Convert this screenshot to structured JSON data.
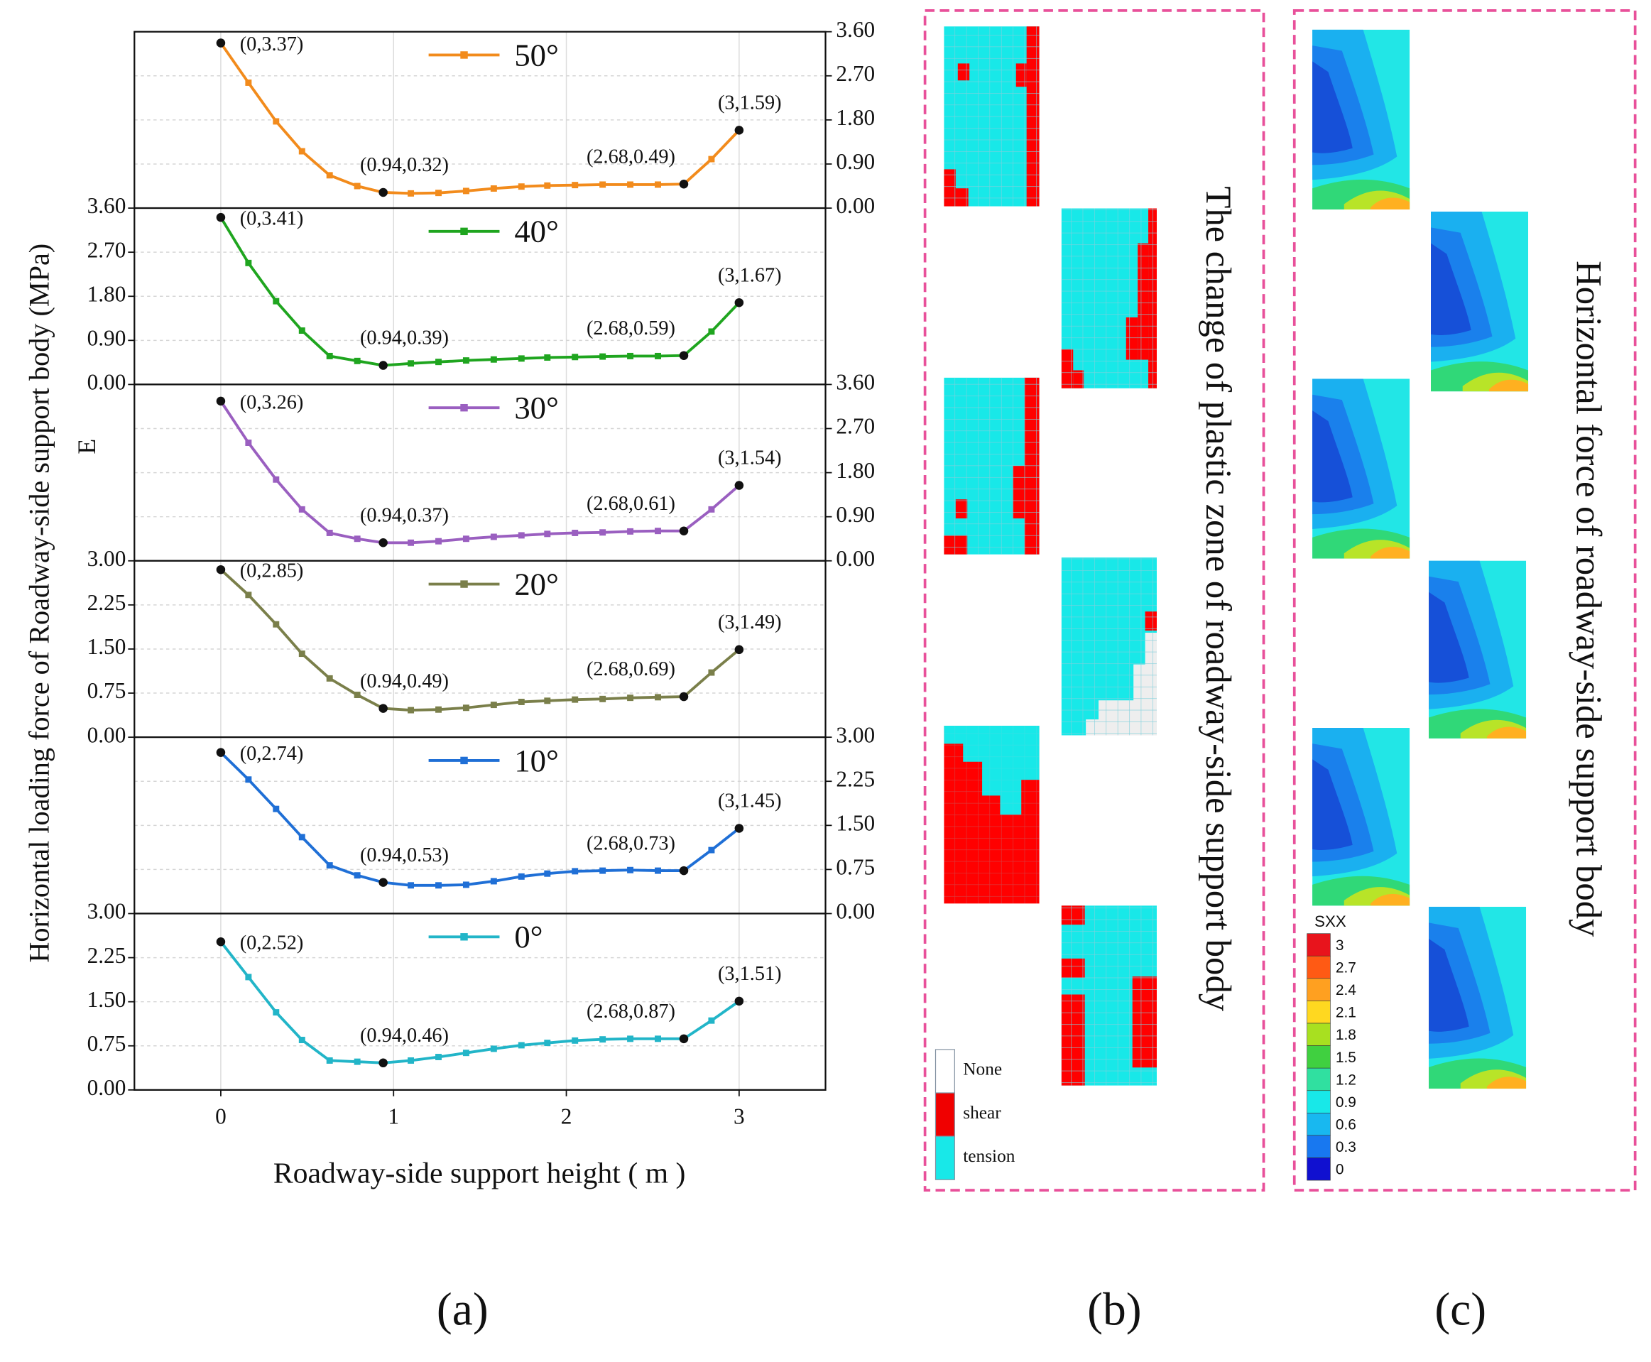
{
  "figure": {
    "ylabel": "Horizontal loading force of Roadway-side support body (MPa)",
    "xlabel": "Roadway-side support height ( m )",
    "side_label": "E",
    "captions": [
      "(a)",
      "(b)",
      "(c)"
    ],
    "panel_b": {
      "title": "The change of plastic zone of roadway-side support body",
      "legend": [
        {
          "name": "None",
          "color": "#ffffff"
        },
        {
          "name": "shear",
          "color": "#f00000"
        },
        {
          "name": "tension",
          "color": "#18e8e8"
        }
      ]
    },
    "panel_c": {
      "title": "Horizontal force of roadway-side support body",
      "colorbar": {
        "title": "SXX",
        "ticks": [
          3,
          2.7,
          2.4,
          2.1,
          1.8,
          1.5,
          1.2,
          0.9,
          0.6,
          0.3,
          0
        ],
        "colors": [
          "#e8141c",
          "#ff5a14",
          "#ffa020",
          "#ffd820",
          "#a8e020",
          "#40d040",
          "#30e0a0",
          "#18e8e8",
          "#18b8f0",
          "#1878f0",
          "#1010d0"
        ]
      }
    }
  },
  "chart_data": [
    {
      "type": "line",
      "xlim": [
        -0.5,
        3.5
      ],
      "ylim": [
        0,
        3.6
      ],
      "yticks": [
        {
          "value": 0,
          "label": "0.00"
        },
        {
          "value": 0.9,
          "label": "0.90"
        },
        {
          "value": 1.8,
          "label": "1.80"
        },
        {
          "value": 2.7,
          "label": "2.70"
        },
        {
          "value": 3.6,
          "label": "3.60"
        }
      ],
      "x": [
        0,
        0.16,
        0.32,
        0.47,
        0.63,
        0.79,
        0.94,
        1.1,
        1.26,
        1.42,
        1.58,
        1.74,
        1.89,
        2.05,
        2.21,
        2.37,
        2.53,
        2.68,
        2.84,
        3
      ],
      "annotations": [
        "(0,3.37)",
        "(0.94,0.32)",
        "(2.68,0.49)",
        "(3,1.59)"
      ],
      "series": [
        {
          "name": "50°",
          "color": "#f28b1c",
          "values": [
            3.37,
            2.56,
            1.77,
            1.16,
            0.67,
            0.45,
            0.32,
            0.3,
            0.31,
            0.35,
            0.4,
            0.44,
            0.46,
            0.47,
            0.48,
            0.48,
            0.48,
            0.49,
            1.0,
            1.59
          ]
        }
      ]
    },
    {
      "type": "line",
      "xlim": [
        -0.5,
        3.5
      ],
      "ylim": [
        0,
        3.6
      ],
      "yticks": [
        {
          "value": 0,
          "label": "0.00"
        },
        {
          "value": 0.9,
          "label": "0.90"
        },
        {
          "value": 1.8,
          "label": "1.80"
        },
        {
          "value": 2.7,
          "label": "2.70"
        },
        {
          "value": 3.6,
          "label": "3.60"
        }
      ],
      "x": [
        0,
        0.16,
        0.32,
        0.47,
        0.63,
        0.79,
        0.94,
        1.1,
        1.26,
        1.42,
        1.58,
        1.74,
        1.89,
        2.05,
        2.21,
        2.37,
        2.53,
        2.68,
        2.84,
        3
      ],
      "annotations": [
        "(0,3.41)",
        "(0.94,0.39)",
        "(2.68,0.59)",
        "(3,1.67)"
      ],
      "series": [
        {
          "name": "40°",
          "color": "#1fa51f",
          "values": [
            3.41,
            2.48,
            1.7,
            1.1,
            0.58,
            0.48,
            0.39,
            0.43,
            0.46,
            0.49,
            0.51,
            0.53,
            0.55,
            0.56,
            0.57,
            0.58,
            0.58,
            0.59,
            1.08,
            1.67
          ]
        }
      ]
    },
    {
      "type": "line",
      "xlim": [
        -0.5,
        3.5
      ],
      "ylim": [
        0,
        3.6
      ],
      "yticks": [
        {
          "value": 0,
          "label": "0.00"
        },
        {
          "value": 0.9,
          "label": "0.90"
        },
        {
          "value": 1.8,
          "label": "1.80"
        },
        {
          "value": 2.7,
          "label": "2.70"
        },
        {
          "value": 3.6,
          "label": "3.60"
        }
      ],
      "x": [
        0,
        0.16,
        0.32,
        0.47,
        0.63,
        0.79,
        0.94,
        1.1,
        1.26,
        1.42,
        1.58,
        1.74,
        1.89,
        2.05,
        2.21,
        2.37,
        2.53,
        2.68,
        2.84,
        3
      ],
      "annotations": [
        "(0,3.26)",
        "(0.94,0.37)",
        "(2.68,0.61)",
        "(3,1.54)"
      ],
      "series": [
        {
          "name": "30°",
          "color": "#9a5fc0",
          "values": [
            3.26,
            2.41,
            1.66,
            1.05,
            0.57,
            0.45,
            0.37,
            0.37,
            0.4,
            0.45,
            0.49,
            0.52,
            0.55,
            0.57,
            0.58,
            0.6,
            0.61,
            0.61,
            1.05,
            1.54
          ]
        }
      ]
    },
    {
      "type": "line",
      "xlim": [
        -0.5,
        3.5
      ],
      "ylim": [
        0,
        3
      ],
      "yticks": [
        {
          "value": 0,
          "label": "0.00"
        },
        {
          "value": 0.75,
          "label": "0.75"
        },
        {
          "value": 1.5,
          "label": "1.50"
        },
        {
          "value": 2.25,
          "label": "2.25"
        },
        {
          "value": 3,
          "label": "3.00"
        }
      ],
      "x": [
        0,
        0.16,
        0.32,
        0.47,
        0.63,
        0.79,
        0.94,
        1.1,
        1.26,
        1.42,
        1.58,
        1.74,
        1.89,
        2.05,
        2.21,
        2.37,
        2.53,
        2.68,
        2.84,
        3
      ],
      "annotations": [
        "(0,2.85)",
        "(0.94,0.49)",
        "(2.68,0.69)",
        "(3,1.49)"
      ],
      "series": [
        {
          "name": "20°",
          "color": "#7a7f4a",
          "values": [
            2.85,
            2.42,
            1.92,
            1.42,
            1.0,
            0.72,
            0.49,
            0.46,
            0.47,
            0.5,
            0.55,
            0.6,
            0.62,
            0.64,
            0.65,
            0.67,
            0.68,
            0.69,
            1.1,
            1.49
          ]
        }
      ]
    },
    {
      "type": "line",
      "xlim": [
        -0.5,
        3.5
      ],
      "ylim": [
        0,
        3
      ],
      "yticks": [
        {
          "value": 0,
          "label": "0.00"
        },
        {
          "value": 0.75,
          "label": "0.75"
        },
        {
          "value": 1.5,
          "label": "1.50"
        },
        {
          "value": 2.25,
          "label": "2.25"
        },
        {
          "value": 3,
          "label": "3.00"
        }
      ],
      "x": [
        0,
        0.16,
        0.32,
        0.47,
        0.63,
        0.79,
        0.94,
        1.1,
        1.26,
        1.42,
        1.58,
        1.74,
        1.89,
        2.05,
        2.21,
        2.37,
        2.53,
        2.68,
        2.84,
        3
      ],
      "annotations": [
        "(0,2.74)",
        "(0.94,0.53)",
        "(2.68,0.73)",
        "(3,1.45)"
      ],
      "series": [
        {
          "name": "10°",
          "color": "#1f6fd6",
          "values": [
            2.74,
            2.28,
            1.78,
            1.3,
            0.82,
            0.65,
            0.53,
            0.48,
            0.48,
            0.49,
            0.55,
            0.63,
            0.68,
            0.72,
            0.73,
            0.74,
            0.73,
            0.73,
            1.08,
            1.45
          ]
        }
      ]
    },
    {
      "type": "line",
      "xlim": [
        -0.5,
        3.5
      ],
      "ylim": [
        0,
        3
      ],
      "yticks": [
        {
          "value": 0,
          "label": "0.00"
        },
        {
          "value": 0.75,
          "label": "0.75"
        },
        {
          "value": 1.5,
          "label": "1.50"
        },
        {
          "value": 2.25,
          "label": "2.25"
        },
        {
          "value": 3,
          "label": "3.00"
        }
      ],
      "xticks": [
        0,
        1,
        2,
        3
      ],
      "x": [
        0,
        0.16,
        0.32,
        0.47,
        0.63,
        0.79,
        0.94,
        1.1,
        1.26,
        1.42,
        1.58,
        1.74,
        1.89,
        2.05,
        2.21,
        2.37,
        2.53,
        2.68,
        2.84,
        3
      ],
      "annotations": [
        "(0,2.52)",
        "(0.94,0.46)",
        "(2.68,0.87)",
        "(3,1.51)"
      ],
      "series": [
        {
          "name": "0°",
          "color": "#22b5c8",
          "values": [
            2.52,
            1.92,
            1.32,
            0.85,
            0.5,
            0.48,
            0.46,
            0.5,
            0.56,
            0.63,
            0.7,
            0.76,
            0.8,
            0.84,
            0.86,
            0.87,
            0.87,
            0.87,
            1.18,
            1.51
          ]
        }
      ]
    }
  ]
}
